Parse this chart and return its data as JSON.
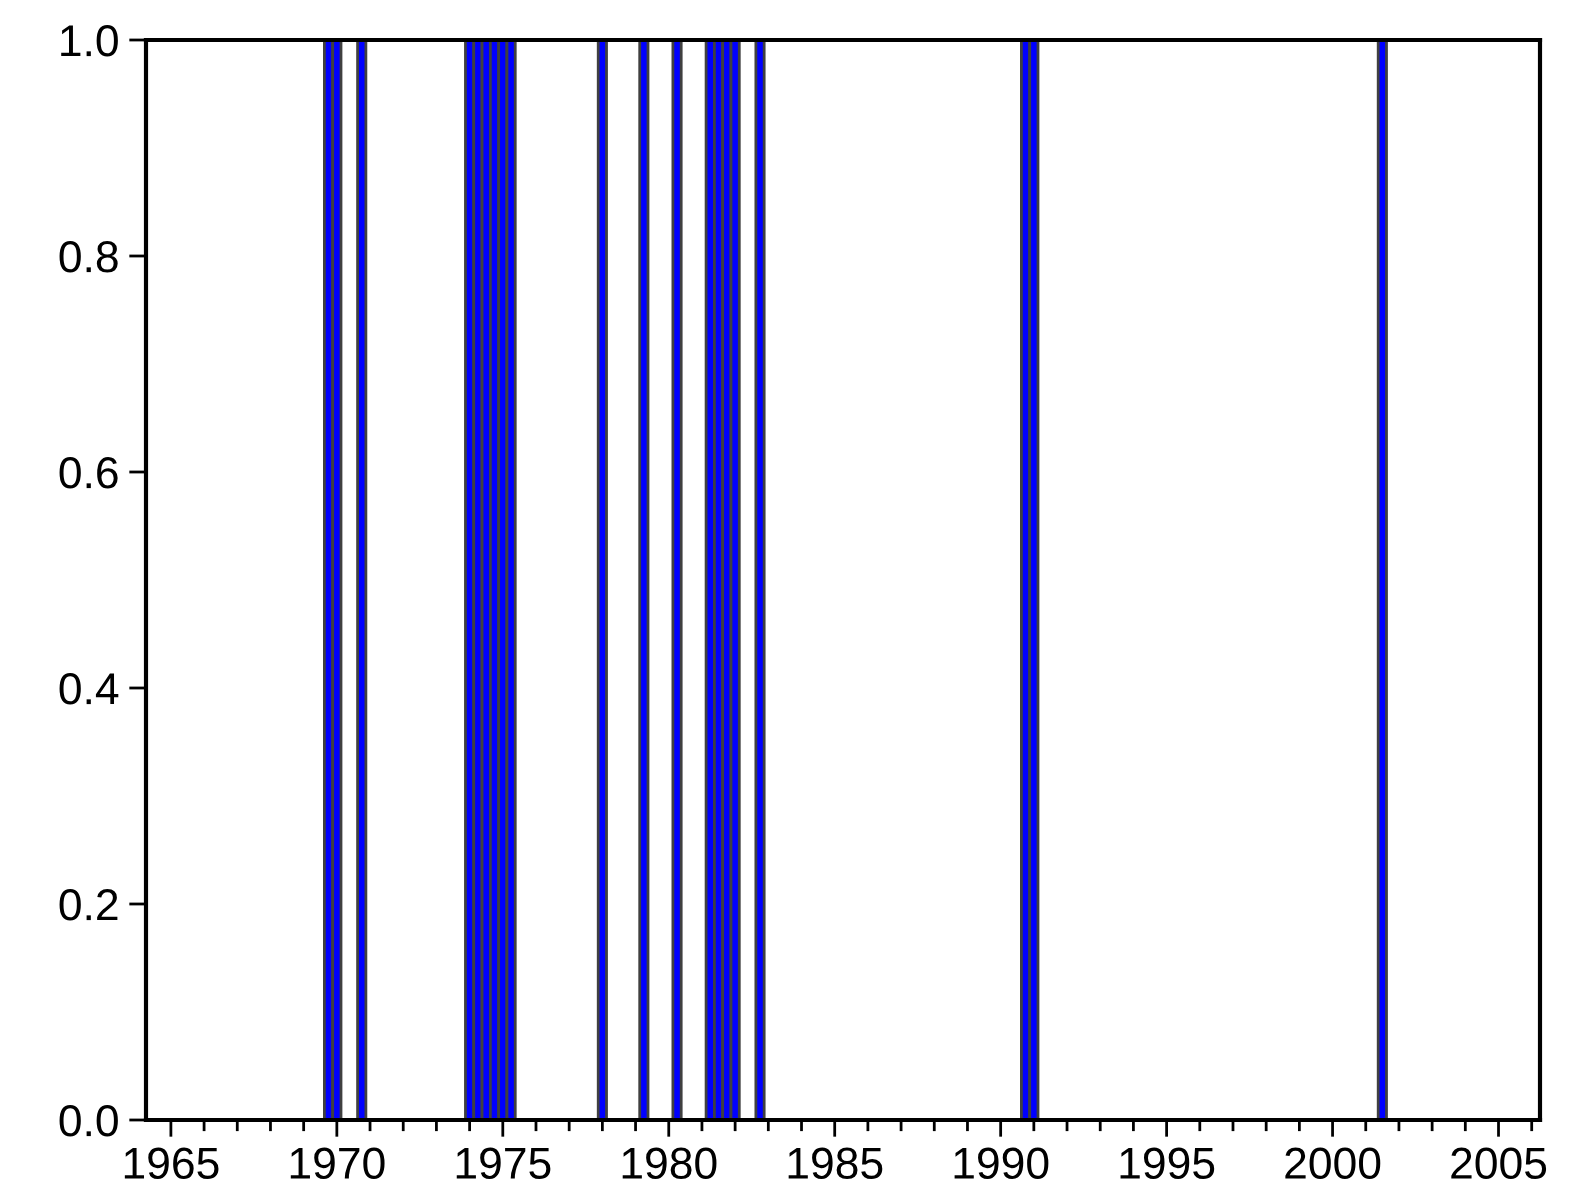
{
  "chart_data": {
    "type": "bar",
    "x": [
      "1969-10",
      "1970-01",
      "1970-10",
      "1974-01",
      "1974-04",
      "1974-07",
      "1974-10",
      "1975-01",
      "1975-04",
      "1978-01",
      "1979-04",
      "1980-04",
      "1981-04",
      "1981-07",
      "1981-10",
      "1982-01",
      "1982-10",
      "1990-10",
      "1991-01",
      "2001-07"
    ],
    "values": [
      1,
      1,
      1,
      1,
      1,
      1,
      1,
      1,
      1,
      1,
      1,
      1,
      1,
      1,
      1,
      1,
      1,
      1,
      1,
      1
    ],
    "color": "#0000ff",
    "xlim": [
      "1964-04",
      "2006-04"
    ],
    "xticks": [
      "1965",
      "1970",
      "1975",
      "1980",
      "1985",
      "1990",
      "1995",
      "2000",
      "2005"
    ],
    "ylim": [
      0,
      1
    ],
    "yticks": [
      {
        "value": 0,
        "label": "0.0"
      },
      {
        "value": 0.2,
        "label": "0.2"
      },
      {
        "value": 0.4,
        "label": "0.4"
      },
      {
        "value": 0.6,
        "label": "0.6"
      },
      {
        "value": 0.8,
        "label": "0.8"
      },
      {
        "value": 1,
        "label": "1.0"
      }
    ],
    "grid": false,
    "legend": false
  }
}
